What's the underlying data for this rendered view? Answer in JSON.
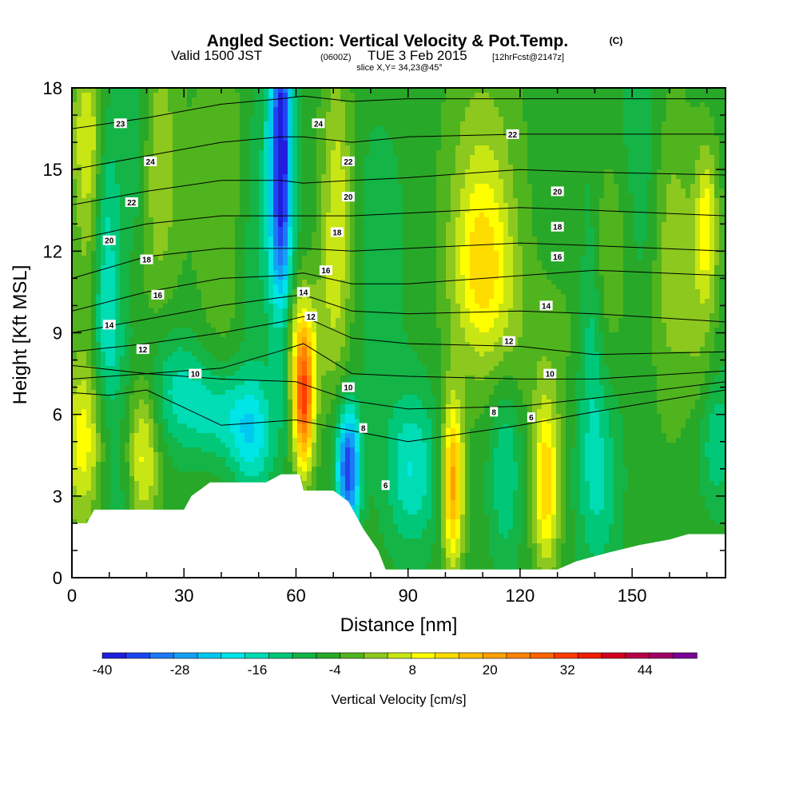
{
  "title": {
    "main": "Angled Section: Vertical Velocity & Pot.Temp.",
    "main_unit": "(C)",
    "valid_prefix": "Valid 1500 JST",
    "valid_z": "(0600Z)",
    "valid_date": "TUE 3 Feb 2015",
    "valid_fcst": "[12hrFcst@2147z]",
    "slice": "slice X,Y= 34,23@45°"
  },
  "chart_data": {
    "type": "heatmap",
    "title": "Angled Section: Vertical Velocity & Pot.Temp. (C)",
    "xlabel": "Distance [nm]",
    "ylabel": "Height [Kft MSL]",
    "xlim": [
      0,
      175
    ],
    "ylim": [
      0,
      18
    ],
    "xticks": [
      0,
      30,
      60,
      90,
      120,
      150
    ],
    "yticks": [
      0,
      3,
      6,
      9,
      12,
      15,
      18
    ],
    "colorbar": {
      "label": "Vertical Velocity [cm/s]",
      "min": -40,
      "max": 52,
      "step": 4,
      "tick_values": [
        -40,
        -28,
        -16,
        -4,
        8,
        20,
        32,
        44
      ],
      "colors": [
        "#1e1edc",
        "#1e46f0",
        "#1e78f5",
        "#14a0f5",
        "#00c8f0",
        "#00e6e6",
        "#00dcb4",
        "#00c878",
        "#14b446",
        "#28a828",
        "#50b41e",
        "#8cc81e",
        "#c8e614",
        "#ffff00",
        "#ffdc00",
        "#ffbe00",
        "#ffa000",
        "#ff8200",
        "#ff6400",
        "#ff3c00",
        "#f01e00",
        "#d2001e",
        "#b40046",
        "#a00064",
        "#780096"
      ]
    },
    "velocity_features": [
      {
        "x": 3,
        "y": 5,
        "sx": 4,
        "sy": 2.2,
        "v": 16
      },
      {
        "x": 5,
        "y": 13,
        "sx": 3,
        "sy": 3.5,
        "v": 8
      },
      {
        "x": 4,
        "y": 16.5,
        "sx": 3,
        "sy": 2,
        "v": 10
      },
      {
        "x": 9,
        "y": 12,
        "sx": 2.5,
        "sy": 3.5,
        "v": -14
      },
      {
        "x": 10,
        "y": 8.5,
        "sx": 4,
        "sy": 1.5,
        "v": -6
      },
      {
        "x": 12,
        "y": 3.5,
        "sx": 4,
        "sy": 2.5,
        "v": -5
      },
      {
        "x": 19,
        "y": 4.5,
        "sx": 3,
        "sy": 2,
        "v": 16
      },
      {
        "x": 17,
        "y": 16,
        "sx": 3,
        "sy": 3,
        "v": -8
      },
      {
        "x": 23,
        "y": 15,
        "sx": 4,
        "sy": 3.5,
        "v": 10
      },
      {
        "x": 28,
        "y": 7,
        "sx": 6,
        "sy": 1.5,
        "v": -10
      },
      {
        "x": 40,
        "y": 6,
        "sx": 7,
        "sy": 1.2,
        "v": -12
      },
      {
        "x": 40,
        "y": 14,
        "sx": 5,
        "sy": 5,
        "v": 6
      },
      {
        "x": 50,
        "y": 12,
        "sx": 4,
        "sy": 5,
        "v": -6
      },
      {
        "x": 56,
        "y": 15.5,
        "sx": 2.2,
        "sy": 4.5,
        "v": -38
      },
      {
        "x": 48,
        "y": 5,
        "sx": 4,
        "sy": 1.5,
        "v": -12
      },
      {
        "x": 62,
        "y": 6.5,
        "sx": 2,
        "sy": 1.8,
        "v": 38
      },
      {
        "x": 61,
        "y": 9,
        "sx": 5,
        "sy": 1.5,
        "v": 10
      },
      {
        "x": 71,
        "y": 13,
        "sx": 3,
        "sy": 4,
        "v": 14
      },
      {
        "x": 74,
        "y": 4,
        "sx": 2.2,
        "sy": 1.6,
        "v": -34
      },
      {
        "x": 82,
        "y": 12,
        "sx": 6,
        "sy": 4,
        "v": -4
      },
      {
        "x": 91,
        "y": 4,
        "sx": 5,
        "sy": 2,
        "v": -14
      },
      {
        "x": 102,
        "y": 3.5,
        "sx": 2,
        "sy": 2.2,
        "v": 28
      },
      {
        "x": 110,
        "y": 11.5,
        "sx": 6,
        "sy": 2.5,
        "v": 20
      },
      {
        "x": 110,
        "y": 16.5,
        "sx": 7,
        "sy": 2.5,
        "v": 6
      },
      {
        "x": 116,
        "y": 4,
        "sx": 3,
        "sy": 2.5,
        "v": -10
      },
      {
        "x": 127,
        "y": 3.5,
        "sx": 2.5,
        "sy": 2.2,
        "v": 22
      },
      {
        "x": 122,
        "y": 8.5,
        "sx": 10,
        "sy": 2,
        "v": 4
      },
      {
        "x": 139,
        "y": 10,
        "sx": 2.5,
        "sy": 4,
        "v": -10
      },
      {
        "x": 143,
        "y": 12,
        "sx": 5,
        "sy": 2.5,
        "v": 8
      },
      {
        "x": 141,
        "y": 3.5,
        "sx": 4,
        "sy": 2.5,
        "v": -10
      },
      {
        "x": 153,
        "y": 14,
        "sx": 5,
        "sy": 4,
        "v": -6
      },
      {
        "x": 160,
        "y": 12,
        "sx": 4,
        "sy": 4,
        "v": 10
      },
      {
        "x": 168,
        "y": 9,
        "sx": 3,
        "sy": 4,
        "v": 6
      },
      {
        "x": 170,
        "y": 13,
        "sx": 2,
        "sy": 2,
        "v": 14
      },
      {
        "x": 172,
        "y": 5,
        "sx": 4,
        "sy": 1.8,
        "v": -10
      }
    ],
    "velocity_background": -2,
    "terrain": [
      [
        0,
        2
      ],
      [
        4,
        2
      ],
      [
        6,
        2.5
      ],
      [
        30,
        2.5
      ],
      [
        32,
        3
      ],
      [
        37,
        3.5
      ],
      [
        52,
        3.5
      ],
      [
        56,
        3.8
      ],
      [
        61,
        3.8
      ],
      [
        62,
        3.2
      ],
      [
        66,
        3.2
      ],
      [
        70,
        3.2
      ],
      [
        74,
        2.8
      ],
      [
        78,
        1.8
      ],
      [
        82,
        1
      ],
      [
        84,
        0.3
      ],
      [
        130,
        0.3
      ],
      [
        135,
        0.6
      ],
      [
        143,
        0.9
      ],
      [
        152,
        1.2
      ],
      [
        160,
        1.4
      ],
      [
        165,
        1.6
      ],
      [
        175,
        1.6
      ]
    ],
    "potential_temperature_contours": [
      {
        "value": 6,
        "line": [
          [
            0,
            6.8
          ],
          [
            10,
            6.7
          ],
          [
            20,
            6.9
          ],
          [
            40,
            5.6
          ],
          [
            60,
            5.8
          ],
          [
            75,
            5.4
          ],
          [
            90,
            5.0
          ],
          [
            120,
            5.6
          ],
          [
            140,
            6.1
          ],
          [
            175,
            6.9
          ]
        ]
      },
      {
        "value": 8,
        "line": [
          [
            0,
            7.3
          ],
          [
            20,
            7.5
          ],
          [
            40,
            7.3
          ],
          [
            60,
            7.2
          ],
          [
            75,
            6.5
          ],
          [
            90,
            6.2
          ],
          [
            120,
            6.3
          ],
          [
            140,
            6.6
          ],
          [
            175,
            7.2
          ]
        ]
      },
      {
        "value": 10,
        "line": [
          [
            0,
            7.8
          ],
          [
            20,
            7.5
          ],
          [
            40,
            7.7
          ],
          [
            55,
            8.3
          ],
          [
            62,
            8.6
          ],
          [
            75,
            7.5
          ],
          [
            90,
            7.4
          ],
          [
            120,
            7.3
          ],
          [
            140,
            7.3
          ],
          [
            175,
            7.6
          ]
        ]
      },
      {
        "value": 12,
        "line": [
          [
            0,
            8.3
          ],
          [
            20,
            8.6
          ],
          [
            40,
            9.0
          ],
          [
            56,
            9.4
          ],
          [
            62,
            9.6
          ],
          [
            75,
            8.8
          ],
          [
            90,
            8.6
          ],
          [
            120,
            8.5
          ],
          [
            140,
            8.2
          ],
          [
            175,
            8.3
          ]
        ]
      },
      {
        "value": 14,
        "line": [
          [
            0,
            9.0
          ],
          [
            20,
            9.5
          ],
          [
            40,
            10.0
          ],
          [
            56,
            10.3
          ],
          [
            62,
            10.4
          ],
          [
            75,
            9.8
          ],
          [
            90,
            9.7
          ],
          [
            120,
            9.8
          ],
          [
            140,
            9.7
          ],
          [
            175,
            9.4
          ]
        ]
      },
      {
        "value": 16,
        "line": [
          [
            0,
            9.8
          ],
          [
            20,
            10.5
          ],
          [
            40,
            11.0
          ],
          [
            56,
            11.1
          ],
          [
            62,
            11.2
          ],
          [
            75,
            10.8
          ],
          [
            90,
            10.8
          ],
          [
            120,
            11.1
          ],
          [
            140,
            11.3
          ],
          [
            175,
            11.1
          ]
        ]
      },
      {
        "value": 18,
        "line": [
          [
            0,
            11.0
          ],
          [
            20,
            11.8
          ],
          [
            40,
            12.1
          ],
          [
            56,
            12.1
          ],
          [
            62,
            12.1
          ],
          [
            75,
            12.0
          ],
          [
            90,
            12.1
          ],
          [
            120,
            12.3
          ],
          [
            140,
            12.2
          ],
          [
            175,
            12.0
          ]
        ]
      },
      {
        "value": 20,
        "line": [
          [
            0,
            12.4
          ],
          [
            20,
            13.0
          ],
          [
            40,
            13.3
          ],
          [
            56,
            13.3
          ],
          [
            62,
            13.3
          ],
          [
            75,
            13.3
          ],
          [
            90,
            13.4
          ],
          [
            120,
            13.6
          ],
          [
            140,
            13.5
          ],
          [
            175,
            13.3
          ]
        ]
      },
      {
        "value": 22,
        "line": [
          [
            0,
            13.7
          ],
          [
            20,
            14.2
          ],
          [
            40,
            14.6
          ],
          [
            56,
            14.6
          ],
          [
            62,
            14.5
          ],
          [
            75,
            14.6
          ],
          [
            90,
            14.7
          ],
          [
            120,
            15.0
          ],
          [
            140,
            14.9
          ],
          [
            175,
            14.8
          ]
        ]
      },
      {
        "value": 24,
        "line": [
          [
            0,
            15.0
          ],
          [
            20,
            15.5
          ],
          [
            40,
            16.0
          ],
          [
            56,
            16.2
          ],
          [
            62,
            16.2
          ],
          [
            75,
            16.0
          ],
          [
            90,
            16.2
          ],
          [
            120,
            16.3
          ],
          [
            140,
            16.3
          ],
          [
            175,
            16.3
          ]
        ]
      },
      {
        "value": 26,
        "line": [
          [
            0,
            16.5
          ],
          [
            20,
            16.9
          ],
          [
            40,
            17.4
          ],
          [
            56,
            17.6
          ],
          [
            62,
            17.7
          ],
          [
            75,
            17.5
          ],
          [
            90,
            17.6
          ],
          [
            120,
            17.6
          ],
          [
            140,
            17.6
          ],
          [
            175,
            17.6
          ]
        ]
      }
    ],
    "contour_labels": [
      {
        "text": "23",
        "x": 13,
        "y": 16.7
      },
      {
        "text": "24",
        "x": 21,
        "y": 15.3
      },
      {
        "text": "22",
        "x": 16,
        "y": 13.8
      },
      {
        "text": "20",
        "x": 10,
        "y": 12.4
      },
      {
        "text": "18",
        "x": 20,
        "y": 11.7
      },
      {
        "text": "16",
        "x": 23,
        "y": 10.4
      },
      {
        "text": "14",
        "x": 10,
        "y": 9.3
      },
      {
        "text": "12",
        "x": 19,
        "y": 8.4
      },
      {
        "text": "10",
        "x": 33,
        "y": 7.5
      },
      {
        "text": "24",
        "x": 66,
        "y": 16.7
      },
      {
        "text": "22",
        "x": 74,
        "y": 15.3
      },
      {
        "text": "20",
        "x": 74,
        "y": 14.0
      },
      {
        "text": "18",
        "x": 71,
        "y": 12.7
      },
      {
        "text": "16",
        "x": 68,
        "y": 11.3
      },
      {
        "text": "14",
        "x": 62,
        "y": 10.5
      },
      {
        "text": "12",
        "x": 64,
        "y": 9.6
      },
      {
        "text": "10",
        "x": 74,
        "y": 7.0
      },
      {
        "text": "8",
        "x": 78,
        "y": 5.5
      },
      {
        "text": "6",
        "x": 84,
        "y": 3.4
      },
      {
        "text": "22",
        "x": 118,
        "y": 16.3
      },
      {
        "text": "20",
        "x": 130,
        "y": 14.2
      },
      {
        "text": "18",
        "x": 130,
        "y": 12.9
      },
      {
        "text": "16",
        "x": 130,
        "y": 11.8
      },
      {
        "text": "14",
        "x": 127,
        "y": 10.0
      },
      {
        "text": "12",
        "x": 117,
        "y": 8.7
      },
      {
        "text": "10",
        "x": 128,
        "y": 7.5
      },
      {
        "text": "8",
        "x": 113,
        "y": 6.1
      },
      {
        "text": "6",
        "x": 123,
        "y": 5.9
      }
    ]
  }
}
